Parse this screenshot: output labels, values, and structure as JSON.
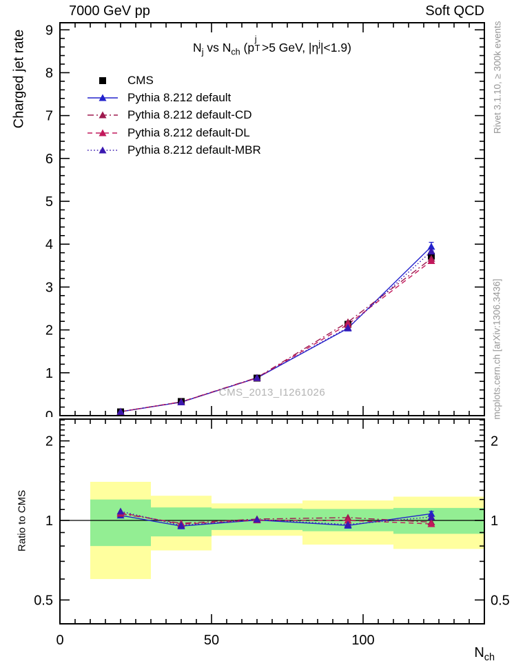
{
  "header": {
    "left": "7000 GeV pp",
    "right": "Soft QCD"
  },
  "side_labels": {
    "rivet": "Rivet 3.1.10, ≥ 300k events",
    "mcplots": "mcplots.cern.ch [arXiv:1306.3436]"
  },
  "watermark": "CMS_2013_I1261026",
  "plot_title": {
    "p1": "N",
    "s1": "j",
    "p2": " vs N",
    "s2": "ch",
    "p3": " (p",
    "sup3": "j",
    "sub3": "T",
    "p4": ">5 GeV, |η",
    "sup4": "j",
    "p5": "|<1.9)"
  },
  "axis_labels": {
    "main_y": "Charged jet rate",
    "ratio_y": "Ratio to CMS",
    "x_base": "N",
    "x_sub": "ch"
  },
  "legend": {
    "items": [
      {
        "label": "CMS",
        "color": "#000000",
        "marker": "square",
        "line": "none"
      },
      {
        "label": "Pythia 8.212 default",
        "color": "#2222cc",
        "marker": "triangle",
        "line": "solid"
      },
      {
        "label": "Pythia 8.212 default-CD",
        "color": "#9e1a4e",
        "marker": "triangle",
        "line": "dashdot"
      },
      {
        "label": "Pythia 8.212 default-DL",
        "color": "#c2185b",
        "marker": "triangle",
        "line": "dashed"
      },
      {
        "label": "Pythia 8.212 default-MBR",
        "color": "#3a18b0",
        "marker": "triangle",
        "line": "dotted"
      }
    ]
  },
  "colors": {
    "band_yellow": "#ffff9e",
    "band_green": "#93ee93",
    "frame": "#000000"
  },
  "chart_data": [
    {
      "type": "scatter",
      "panel": "main",
      "title": "N_j vs N_ch (p_T^j>5 GeV, |eta^j|<1.9)",
      "xlabel": "N_ch",
      "ylabel": "Charged jet rate",
      "xlim": [
        0,
        140
      ],
      "ylim": [
        0,
        9.17
      ],
      "x_ticks": [
        0,
        50,
        100
      ],
      "y_ticks": [
        0,
        1,
        2,
        3,
        4,
        5,
        6,
        7,
        8,
        9
      ],
      "grid": false,
      "x": [
        20,
        40,
        65,
        95,
        122.5
      ],
      "series": [
        {
          "name": "CMS",
          "marker": "square",
          "color": "#000000",
          "line": "none",
          "values": [
            0.088,
            0.33,
            0.876,
            2.13,
            3.72
          ],
          "errors": [
            0.015,
            0.02,
            0.03,
            0.05,
            0.1
          ]
        },
        {
          "name": "Pythia 8.212 default",
          "marker": "triangle",
          "color": "#2222cc",
          "line": "solid",
          "values": [
            0.092,
            0.314,
            0.879,
            2.038,
            3.943
          ],
          "errors": [
            0,
            0,
            0,
            0,
            0.1
          ]
        },
        {
          "name": "Pythia 8.212 default-CD",
          "marker": "triangle",
          "color": "#9e1a4e",
          "line": "dashdot",
          "values": [
            0.093,
            0.322,
            0.887,
            2.183,
            3.664
          ],
          "errors": [
            0,
            0,
            0,
            0,
            0.05
          ]
        },
        {
          "name": "Pythia 8.212 default-DL",
          "marker": "triangle",
          "color": "#c2185b",
          "line": "dashed",
          "values": [
            0.094,
            0.319,
            0.878,
            2.13,
            3.609
          ],
          "errors": [
            0,
            0,
            0,
            0,
            0.05
          ]
        },
        {
          "name": "Pythia 8.212 default-MBR",
          "marker": "triangle",
          "color": "#3a18b0",
          "line": "dotted",
          "values": [
            0.095,
            0.316,
            0.883,
            2.055,
            3.832
          ],
          "errors": [
            0,
            0,
            0,
            0,
            0.05
          ]
        }
      ]
    },
    {
      "type": "ratio",
      "panel": "ratio",
      "ylabel": "Ratio to CMS",
      "yscale": "log",
      "ylim": [
        0.405,
        2.42
      ],
      "y_ticks": [
        "0.5",
        "1",
        "2"
      ],
      "x": [
        20,
        40,
        65,
        95,
        122.5
      ],
      "reference_line": 1.0,
      "bands": [
        {
          "x0": 10,
          "x1": 30,
          "yellow": [
            0.6,
            1.4
          ],
          "green": [
            0.8,
            1.2
          ]
        },
        {
          "x0": 30,
          "x1": 50,
          "yellow": [
            0.77,
            1.24
          ],
          "green": [
            0.87,
            1.12
          ]
        },
        {
          "x0": 50,
          "x1": 80,
          "yellow": [
            0.875,
            1.16
          ],
          "green": [
            0.92,
            1.11
          ]
        },
        {
          "x0": 80,
          "x1": 110,
          "yellow": [
            0.81,
            1.19
          ],
          "green": [
            0.91,
            1.105
          ]
        },
        {
          "x0": 110,
          "x1": 140,
          "yellow": [
            0.78,
            1.23
          ],
          "green": [
            0.89,
            1.115
          ]
        }
      ],
      "series": [
        {
          "name": "Pythia 8.212 default",
          "marker": "triangle",
          "color": "#2222cc",
          "line": "solid",
          "values": [
            1.045,
            0.952,
            1.003,
            0.957,
            1.06
          ],
          "errors": [
            0.012,
            0.008,
            0.006,
            0.008,
            0.022
          ]
        },
        {
          "name": "Pythia 8.212 default-CD",
          "marker": "triangle",
          "color": "#9e1a4e",
          "line": "dashdot",
          "values": [
            1.06,
            0.975,
            1.012,
            1.025,
            0.985
          ],
          "errors": [
            0,
            0,
            0,
            0,
            0
          ]
        },
        {
          "name": "Pythia 8.212 default-DL",
          "marker": "triangle",
          "color": "#c2185b",
          "line": "dashed",
          "values": [
            1.07,
            0.968,
            1.002,
            1.0,
            0.97
          ],
          "errors": [
            0,
            0,
            0,
            0,
            0
          ]
        },
        {
          "name": "Pythia 8.212 default-MBR",
          "marker": "triangle",
          "color": "#3a18b0",
          "line": "dotted",
          "values": [
            1.082,
            0.958,
            1.008,
            0.965,
            1.03
          ],
          "errors": [
            0,
            0,
            0,
            0,
            0
          ]
        }
      ]
    }
  ]
}
